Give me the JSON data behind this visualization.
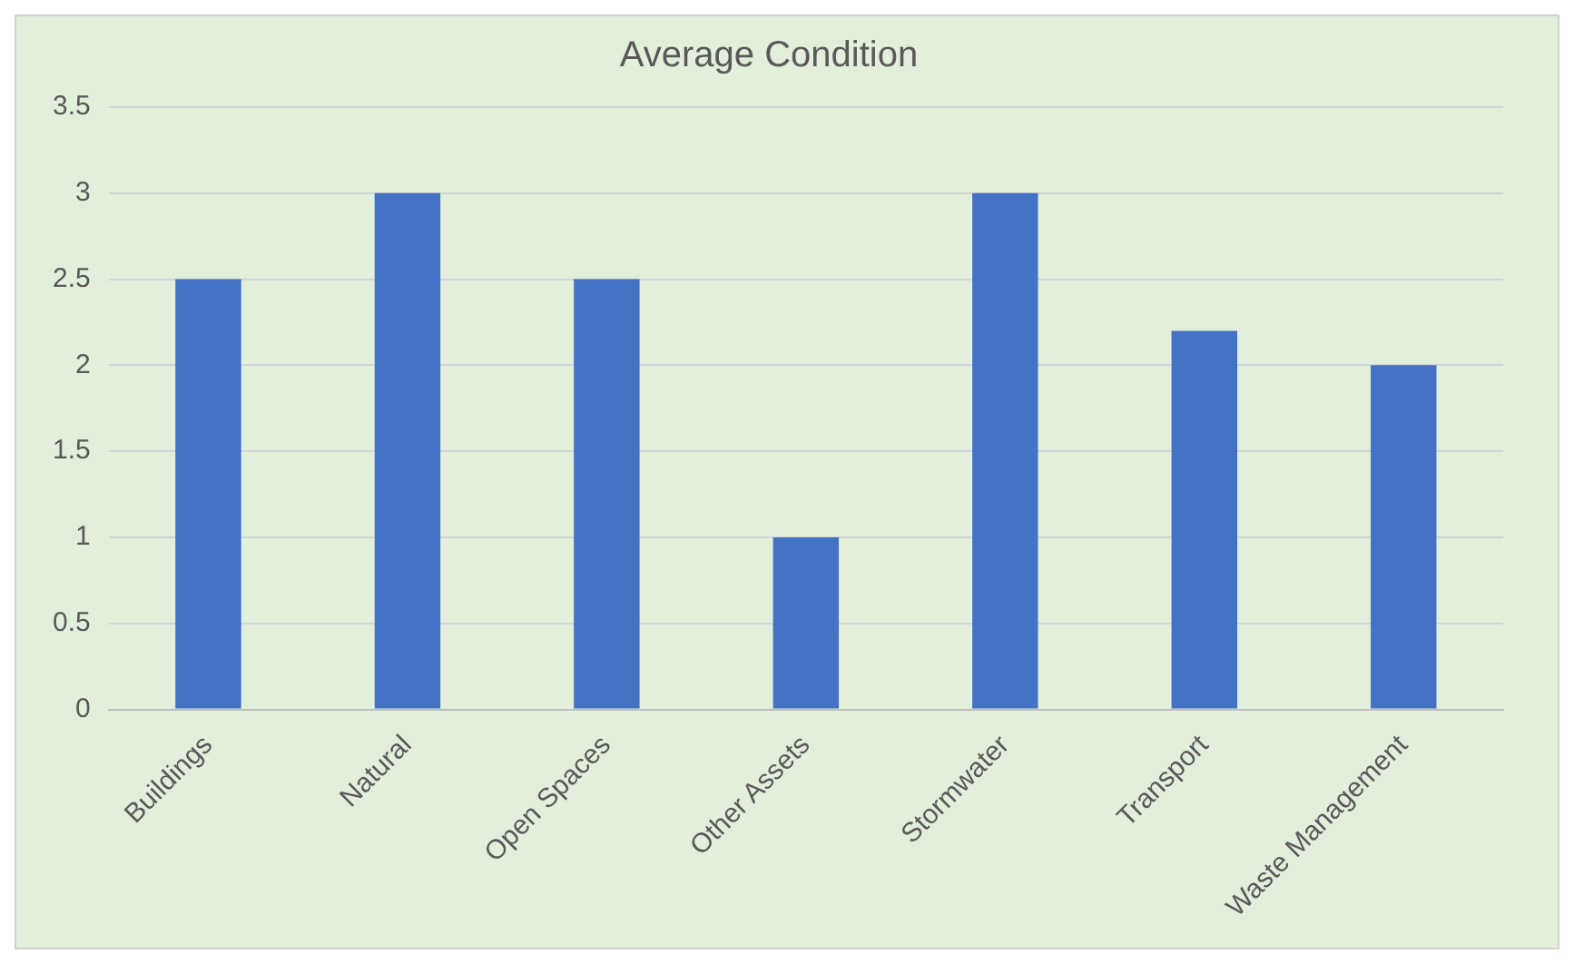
{
  "chart_data": {
    "type": "bar",
    "title": "Average Condition",
    "categories": [
      "Buildings",
      "Natural",
      "Open Spaces",
      "Other Assets",
      "Stormwater",
      "Transport",
      "Waste Management"
    ],
    "values": [
      2.5,
      3,
      2.5,
      1,
      3,
      2.2,
      2
    ],
    "color": "#4472c4",
    "ylim": [
      0,
      3.5
    ],
    "yticks": [
      0,
      0.5,
      1,
      1.5,
      2,
      2.5,
      3,
      3.5
    ],
    "grid": "y",
    "legend": false
  }
}
